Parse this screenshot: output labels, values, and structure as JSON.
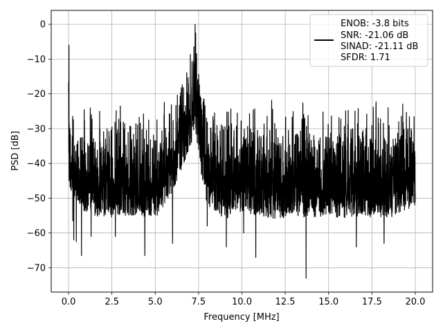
{
  "chart_data": {
    "type": "line",
    "title": "",
    "xlabel": "Frequency [MHz]",
    "ylabel": "PSD [dB]",
    "xlim": [
      -1.0,
      21.0
    ],
    "ylim": [
      -77,
      4
    ],
    "x_ticks": [
      0.0,
      2.5,
      5.0,
      7.5,
      10.0,
      12.5,
      15.0,
      17.5,
      20.0
    ],
    "x_tick_labels": [
      "0.0",
      "2.5",
      "5.0",
      "7.5",
      "10.0",
      "12.5",
      "15.0",
      "17.5",
      "20.0"
    ],
    "y_ticks": [
      0,
      -10,
      -20,
      -30,
      -40,
      -50,
      -60,
      -70
    ],
    "y_tick_labels": [
      "0",
      "−10",
      "−20",
      "−30",
      "−40",
      "−50",
      "−60",
      "−70"
    ],
    "grid": true,
    "legend_position": "top-right",
    "legend_lines": [
      "ENOB: -3.8 bits",
      "SNR: -21.06 dB",
      "SINAD: -21.11 dB",
      "SFDR: 1.71"
    ],
    "series": [
      {
        "color": "#000000",
        "style": "dense-noise-band",
        "band_upper": {
          "x": [
            0.0,
            0.02,
            0.05,
            0.2,
            0.5,
            1.0,
            1.5,
            2.0,
            2.5,
            3.0,
            3.5,
            4.0,
            4.5,
            5.0,
            5.5,
            6.0,
            6.3,
            6.6,
            6.9,
            7.1,
            7.3,
            7.5,
            7.7,
            8.0,
            8.5,
            9.0,
            10.0,
            11.0,
            12.0,
            13.0,
            14.0,
            15.0,
            16.0,
            17.0,
            18.0,
            19.0,
            20.0
          ],
          "y": [
            -14,
            -6,
            -25,
            -24,
            -22,
            -22,
            -23,
            -20,
            -21,
            -23,
            -22,
            -22,
            -21,
            -22,
            -22,
            -20,
            -17,
            -12,
            -5,
            -4,
            0,
            -6,
            -16,
            -20,
            -21,
            -21,
            -21,
            -21,
            -20,
            -22,
            -21,
            -21,
            -21,
            -21,
            -21,
            -22,
            -24
          ]
        },
        "band_lower": {
          "x": [
            0.0,
            0.5,
            1.0,
            2.0,
            3.0,
            4.0,
            5.0,
            6.0,
            6.5,
            7.0,
            7.3,
            7.6,
            8.0,
            9.0,
            10.0,
            11.0,
            12.0,
            13.0,
            14.0,
            15.0,
            16.0,
            17.0,
            18.0,
            19.0,
            20.0
          ],
          "y": [
            -46,
            -52,
            -54,
            -56,
            -55,
            -55,
            -56,
            -48,
            -42,
            -36,
            -30,
            -42,
            -52,
            -56,
            -54,
            -55,
            -56,
            -55,
            -56,
            -55,
            -56,
            -55,
            -56,
            -55,
            -52
          ]
        },
        "dips": [
          {
            "x": 0.25,
            "y": -56.5
          },
          {
            "x": 0.3,
            "y": -62
          },
          {
            "x": 0.45,
            "y": -62.5
          },
          {
            "x": 0.75,
            "y": -66.5
          },
          {
            "x": 1.3,
            "y": -61
          },
          {
            "x": 2.7,
            "y": -61
          },
          {
            "x": 4.4,
            "y": -66.5
          },
          {
            "x": 6.0,
            "y": -63
          },
          {
            "x": 8.0,
            "y": -58
          },
          {
            "x": 9.1,
            "y": -64
          },
          {
            "x": 10.1,
            "y": -60
          },
          {
            "x": 10.8,
            "y": -67
          },
          {
            "x": 13.7,
            "y": -73
          },
          {
            "x": 16.6,
            "y": -64
          },
          {
            "x": 18.2,
            "y": -63
          }
        ]
      }
    ]
  }
}
